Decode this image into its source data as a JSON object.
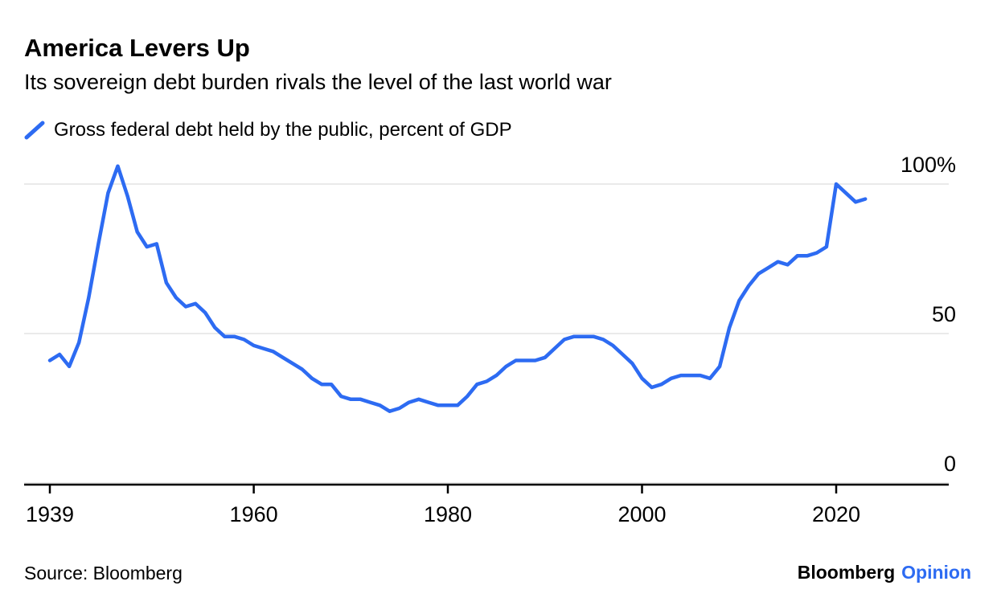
{
  "header": {
    "title": "America Levers Up",
    "subtitle": "Its sovereign debt burden rivals the level of the last world war"
  },
  "legend": {
    "label": "Gross federal debt held by the public, percent of GDP"
  },
  "chart_data": {
    "type": "line",
    "title": "America Levers Up",
    "subtitle": "Its sovereign debt burden rivals the level of the last world war",
    "series_name": "Gross federal debt held by the public, percent of GDP",
    "x": [
      1939,
      1940,
      1941,
      1942,
      1943,
      1944,
      1945,
      1946,
      1947,
      1948,
      1949,
      1950,
      1951,
      1952,
      1953,
      1954,
      1955,
      1956,
      1957,
      1958,
      1959,
      1960,
      1961,
      1962,
      1963,
      1964,
      1965,
      1966,
      1967,
      1968,
      1969,
      1970,
      1971,
      1972,
      1973,
      1974,
      1975,
      1976,
      1977,
      1978,
      1979,
      1980,
      1981,
      1982,
      1983,
      1984,
      1985,
      1986,
      1987,
      1988,
      1989,
      1990,
      1991,
      1992,
      1993,
      1994,
      1995,
      1996,
      1997,
      1998,
      1999,
      2000,
      2001,
      2002,
      2003,
      2004,
      2005,
      2006,
      2007,
      2008,
      2009,
      2010,
      2011,
      2012,
      2013,
      2014,
      2015,
      2016,
      2017,
      2018,
      2019,
      2020,
      2021,
      2022,
      2023
    ],
    "values": [
      41,
      43,
      39,
      47,
      62,
      80,
      97,
      106,
      96,
      84,
      79,
      80,
      67,
      62,
      59,
      60,
      57,
      52,
      49,
      49,
      48,
      46,
      45,
      44,
      42,
      40,
      38,
      35,
      33,
      33,
      29,
      28,
      28,
      27,
      26,
      24,
      25,
      27,
      28,
      27,
      26,
      26,
      26,
      29,
      33,
      34,
      36,
      39,
      41,
      41,
      41,
      42,
      45,
      48,
      49,
      49,
      49,
      48,
      46,
      43,
      40,
      35,
      32,
      33,
      35,
      36,
      36,
      36,
      35,
      39,
      52,
      61,
      66,
      70,
      72,
      74,
      73,
      76,
      76,
      77,
      79,
      100,
      97,
      94,
      95
    ],
    "xlabel": "",
    "ylabel": "percent of GDP",
    "ylim": [
      0,
      110
    ],
    "xlim": [
      1936,
      2031
    ],
    "yticks": [
      {
        "value": 100,
        "label": "100%"
      },
      {
        "value": 50,
        "label": "50"
      },
      {
        "value": 0,
        "label": "0"
      }
    ],
    "xticks": [
      1939,
      1960,
      1980,
      2000,
      2020
    ],
    "grid": "horizontal",
    "legend_position": "top-left"
  },
  "footer": {
    "source": "Source: Bloomberg",
    "brand": "Bloomberg",
    "brand_suffix": "Opinion"
  },
  "colors": {
    "line": "#2d6bf2",
    "brand_blue": "#2d6bf2",
    "grid": "#e4e4e4",
    "axis": "#000000",
    "text": "#000000"
  }
}
